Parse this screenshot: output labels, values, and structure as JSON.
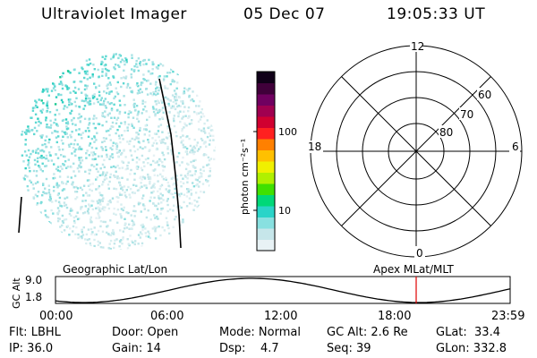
{
  "header": {
    "title": "Ultraviolet Imager",
    "date": "05 Dec 07",
    "time": "19:05:33 UT"
  },
  "colorbar": {
    "unit_label": "photon cm⁻²s⁻¹",
    "ticks": [
      "100",
      "10"
    ],
    "colors": [
      "#e8f2f5",
      "#c6e6ea",
      "#88e0e0",
      "#2ad4c8",
      "#00d878",
      "#40e000",
      "#b0f000",
      "#f0f000",
      "#ffc000",
      "#ff8000",
      "#ff2020",
      "#d00030",
      "#a00050",
      "#700060",
      "#40003a",
      "#100018"
    ]
  },
  "polar": {
    "hour_labels": {
      "top": "12",
      "left": "18",
      "right": "6",
      "bottom": "0"
    },
    "lat_labels": [
      "60",
      "70",
      "80"
    ]
  },
  "orbit": {
    "left_label": "Geographic Lat/Lon",
    "right_label": "Apex MLat/MLT",
    "y_axis_label": "GC Alt",
    "y_ticks": [
      "9.0",
      "1.8"
    ],
    "x_ticks": [
      "00:00",
      "06:00",
      "12:00",
      "18:00",
      "23:59"
    ],
    "marker_color": "#e00000"
  },
  "info": {
    "flt": "Flt: LBHL",
    "ip": "IP: 36.0",
    "door": "Door: Open",
    "gain": "Gain: 14",
    "mode": "Mode: Normal",
    "dsp": "Dsp:    4.7",
    "gc_alt": "GC Alt: 2.6 Re",
    "seq": "Seq: 39",
    "glat": "GLat:  33.4",
    "glon": "GLon: 332.8"
  }
}
